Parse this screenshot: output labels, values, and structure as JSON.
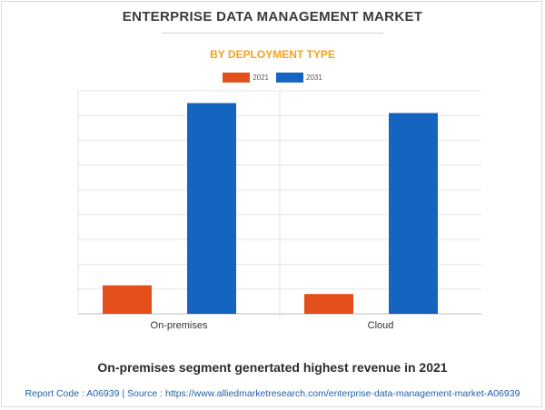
{
  "header": {
    "title": "ENTERPRISE DATA MANAGEMENT MARKET",
    "subtitle": "BY DEPLOYMENT TYPE"
  },
  "chart_data": {
    "type": "bar",
    "categories": [
      "On-premises",
      "Cloud"
    ],
    "series": [
      {
        "name": "2021",
        "color": "#e3501b",
        "values": [
          11.5,
          8
        ]
      },
      {
        "name": "2031",
        "color": "#1565c0",
        "values": [
          85,
          81
        ]
      }
    ],
    "ylim": [
      0,
      90
    ],
    "grid": true,
    "legend": "top-center"
  },
  "caption": "On-premises segment genertated highest revenue in 2021",
  "footer": "Report Code : A06939  |  Source : https://www.alliedmarketresearch.com/enterprise-data-management-market-A06939"
}
